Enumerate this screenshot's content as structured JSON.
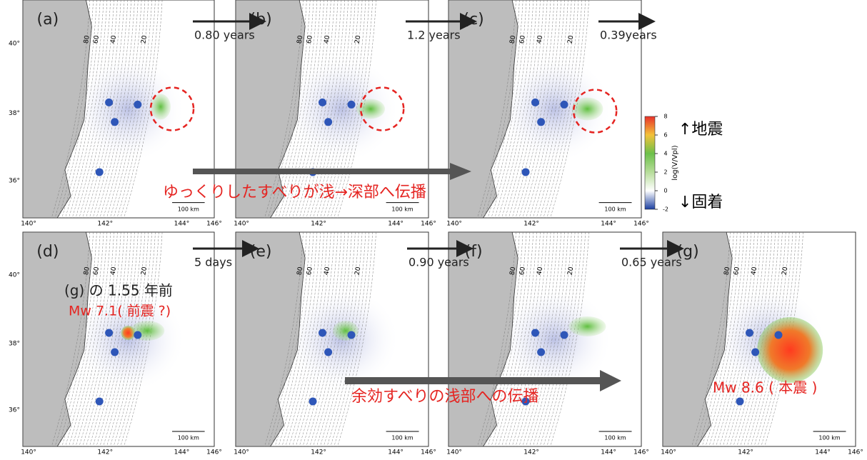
{
  "panels": [
    {
      "label": "(a)"
    },
    {
      "label": "(b)"
    },
    {
      "label": "(c)"
    },
    {
      "label": "(d)"
    },
    {
      "label": "(e)"
    },
    {
      "label": "(f)"
    },
    {
      "label": "(g)"
    }
  ],
  "intervals": [
    "0.80 years",
    "1.2 years",
    "0.39years",
    "5 days",
    "0.90 years",
    "0.65 years"
  ],
  "lon_ticks": [
    "140°",
    "142°",
    "144°",
    "146°"
  ],
  "lat_ticks": [
    "36°",
    "38°",
    "40°"
  ],
  "depth_contours": [
    "80",
    "60",
    "40",
    "20"
  ],
  "scale_bar": "100 km",
  "colorbar": {
    "label": "log(V/Vpl)",
    "ticks": [
      8,
      6,
      4,
      2,
      0,
      -2
    ],
    "up": "↑地震",
    "down": "↓固着"
  },
  "annotations": {
    "top": "ゆっくりしたすべりが浅→深部へ伝播",
    "bottom": "余効すべりの浅部への伝播",
    "d_line1": "(g) の 1.55 年前",
    "d_line2": "Mw 7.1( 前震 ?)",
    "g": "Mw 8.6 ( 本震 )"
  }
}
